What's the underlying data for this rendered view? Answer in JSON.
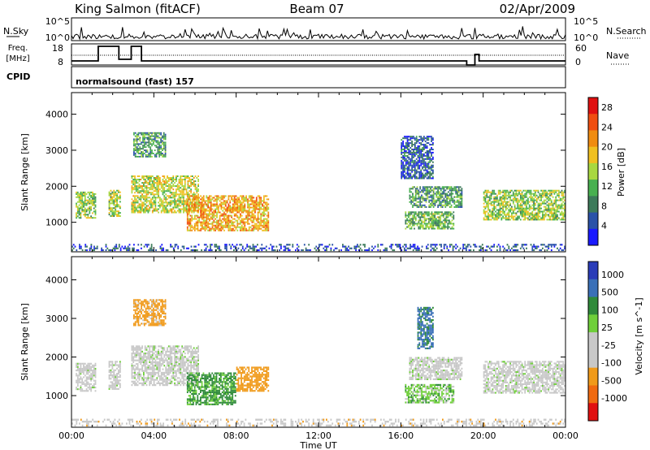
{
  "header": {
    "station": "King Salmon (fitACF)",
    "beam": "Beam 07",
    "date": "02/Apr/2009"
  },
  "summary_panel": {
    "left_label": "N.Sky",
    "right_label": "N.Search",
    "left_ticks": [
      "10^5",
      "10^0"
    ],
    "right_ticks": [
      "10^5",
      "10^0"
    ]
  },
  "freq_panel": {
    "left_label_line1": "Freq.",
    "left_label_line2": "[MHz]",
    "left_ticks": [
      "18",
      "8"
    ],
    "right_label": "Nave",
    "right_ticks": [
      "60",
      "0"
    ]
  },
  "cpid": {
    "label": "CPID",
    "value": "normalsound (fast) 157"
  },
  "colors": {
    "power_scale": [
      "#1a1aff",
      "#2a52a8",
      "#3c7a5a",
      "#48b050",
      "#a8d840",
      "#f0c020",
      "#f08c10",
      "#f04e10",
      "#e01010"
    ],
    "velocity_scale": [
      "#2a3cb8",
      "#3a70b8",
      "#2f8a3a",
      "#6fcf3a",
      "#c8c8c8",
      "#c8c8c8",
      "#f09a1a",
      "#f06a10",
      "#e01010"
    ]
  },
  "chart_data": [
    {
      "type": "heatmap",
      "title": "",
      "xlabel": "",
      "ylabel": "Slant Range [km]",
      "xlim": [
        "00:00",
        "24:00"
      ],
      "ylim": [
        180,
        4600
      ],
      "x_ticks": [
        "00:00",
        "04:00",
        "08:00",
        "12:00",
        "16:00",
        "20:00",
        "00:00"
      ],
      "y_ticks": [
        1000,
        2000,
        3000,
        4000
      ],
      "colorbar_label": "Power [dB]",
      "colorbar_ticks": [
        4,
        8,
        12,
        16,
        20,
        24,
        28
      ],
      "colorbar_range": [
        0,
        30
      ],
      "grid": false,
      "regions": [
        {
          "t": [
            0.2,
            1.2
          ],
          "r": [
            1100,
            1850
          ],
          "val": 14
        },
        {
          "t": [
            1.8,
            2.4
          ],
          "r": [
            1150,
            1900
          ],
          "val": 14
        },
        {
          "t": [
            2.9,
            6.2
          ],
          "r": [
            1250,
            2300
          ],
          "val": 16
        },
        {
          "t": [
            5.6,
            9.6
          ],
          "r": [
            750,
            1750
          ],
          "val": 20
        },
        {
          "t": [
            3.0,
            4.6
          ],
          "r": [
            2800,
            3500
          ],
          "val": 10
        },
        {
          "t": [
            16.2,
            18.6
          ],
          "r": [
            800,
            1300
          ],
          "val": 12
        },
        {
          "t": [
            16.4,
            19.0
          ],
          "r": [
            1400,
            2000
          ],
          "val": 10
        },
        {
          "t": [
            16.0,
            17.6
          ],
          "r": [
            2200,
            3400
          ],
          "val": 6
        },
        {
          "t": [
            20.0,
            24.0
          ],
          "r": [
            1050,
            1900
          ],
          "val": 14
        },
        {
          "t": [
            0.0,
            24.0
          ],
          "r": [
            200,
            400
          ],
          "val": 5
        }
      ]
    },
    {
      "type": "heatmap",
      "title": "",
      "xlabel": "Time UT",
      "ylabel": "Slant Range [km]",
      "xlim": [
        "00:00",
        "24:00"
      ],
      "ylim": [
        180,
        4600
      ],
      "x_ticks": [
        "00:00",
        "04:00",
        "08:00",
        "12:00",
        "16:00",
        "20:00",
        "00:00"
      ],
      "y_ticks": [
        1000,
        2000,
        3000,
        4000
      ],
      "colorbar_label": "Velocity [m s^-1]",
      "colorbar_ticks": [
        "1000",
        "500",
        "100",
        "25",
        "-25",
        "-100",
        "-500",
        "-1000"
      ],
      "grid": false,
      "regions": [
        {
          "t": [
            0.2,
            1.2
          ],
          "r": [
            1100,
            1850
          ],
          "val": 0
        },
        {
          "t": [
            1.8,
            2.4
          ],
          "r": [
            1150,
            1900
          ],
          "val": 0
        },
        {
          "t": [
            2.9,
            6.2
          ],
          "r": [
            1250,
            2300
          ],
          "val": 0
        },
        {
          "t": [
            5.6,
            8.0
          ],
          "r": [
            750,
            1600
          ],
          "val": 150
        },
        {
          "t": [
            8.0,
            9.6
          ],
          "r": [
            1100,
            1750
          ],
          "val": -300
        },
        {
          "t": [
            3.0,
            4.6
          ],
          "r": [
            2800,
            3500
          ],
          "val": -200
        },
        {
          "t": [
            16.2,
            18.6
          ],
          "r": [
            800,
            1300
          ],
          "val": 60
        },
        {
          "t": [
            16.4,
            19.0
          ],
          "r": [
            1400,
            2000
          ],
          "val": 0
        },
        {
          "t": [
            16.8,
            17.6
          ],
          "r": [
            2200,
            3300
          ],
          "val": 600
        },
        {
          "t": [
            20.0,
            24.0
          ],
          "r": [
            1050,
            1900
          ],
          "val": 0
        },
        {
          "t": [
            0.0,
            24.0
          ],
          "r": [
            200,
            400
          ],
          "val": -60
        }
      ]
    }
  ]
}
